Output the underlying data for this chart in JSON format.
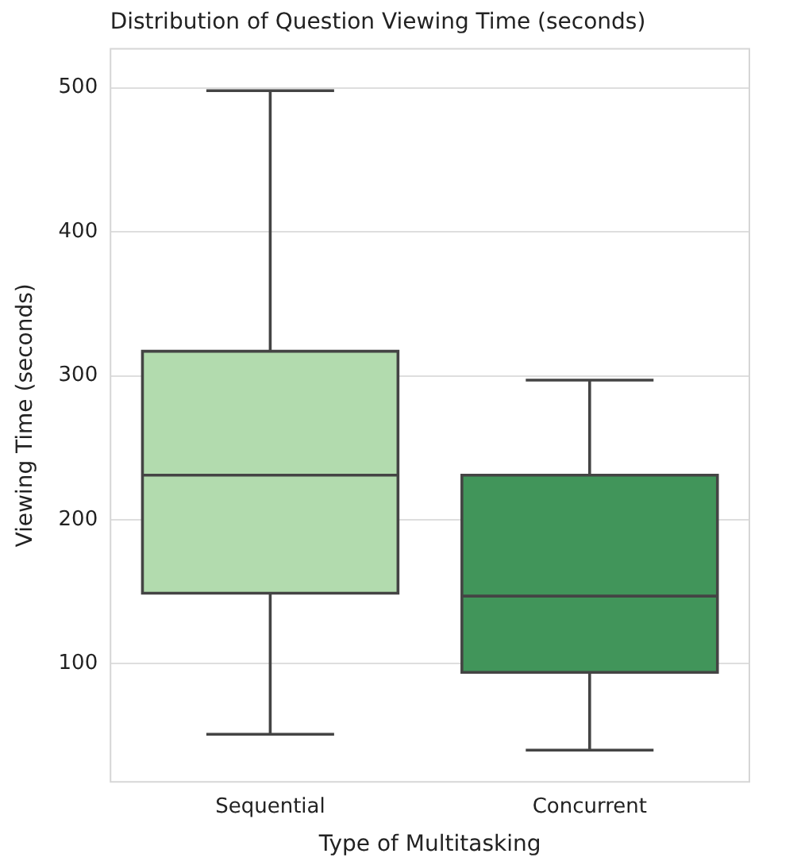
{
  "chart_data": {
    "type": "box",
    "title": "Distribution of Question Viewing Time (seconds)",
    "xlabel": "Type of Multitasking",
    "ylabel": "Viewing Time (seconds)",
    "categories": [
      "Sequential",
      "Concurrent"
    ],
    "colors": [
      "#b2dbae",
      "#41955a"
    ],
    "boxes": [
      {
        "low": 51,
        "q1": 149,
        "median": 231,
        "q3": 317,
        "high": 498
      },
      {
        "low": 40,
        "q1": 94,
        "median": 147,
        "q3": 231,
        "high": 297
      }
    ],
    "ylim": [
      18,
      527
    ],
    "yticks": [
      100,
      200,
      300,
      400,
      500
    ],
    "grid": "y"
  }
}
